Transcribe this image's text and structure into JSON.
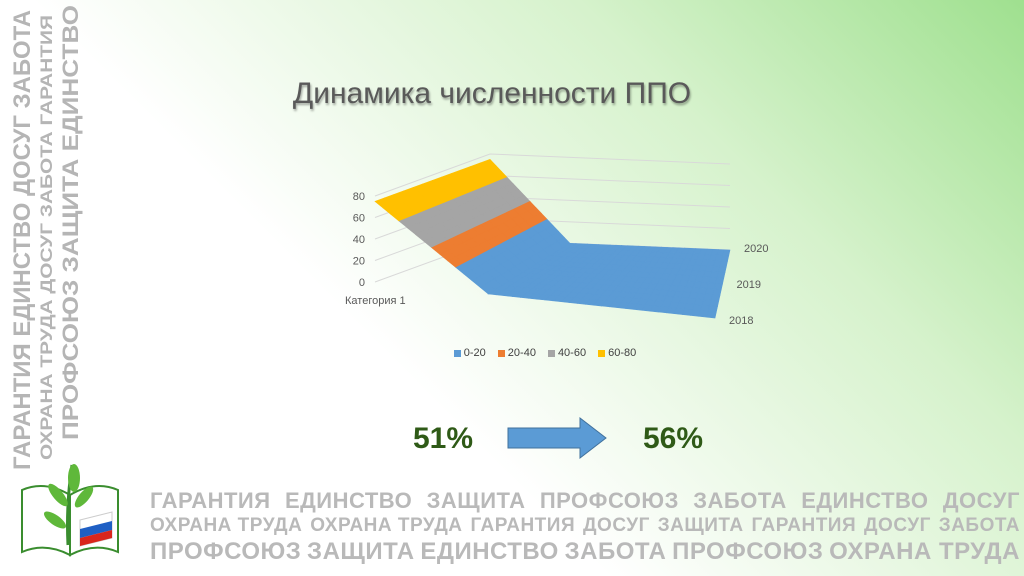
{
  "title": "Динамика численности ППО",
  "chart_data": {
    "type": "surface",
    "categories": [
      "Категория 1",
      null,
      null,
      null
    ],
    "series": [
      {
        "name": "2018",
        "values": [
          75,
          0,
          0,
          0
        ]
      },
      {
        "name": "2019",
        "values": [
          75,
          0,
          0,
          0
        ]
      },
      {
        "name": "2020",
        "values": [
          75,
          0,
          0,
          0
        ]
      }
    ],
    "zlim": [
      0,
      80
    ],
    "zticks": [
      0,
      20,
      40,
      60,
      80
    ],
    "grid": true,
    "bands": [
      {
        "name": "0-20",
        "color": "#5b9bd5"
      },
      {
        "name": "20-40",
        "color": "#ed7d31"
      },
      {
        "name": "40-60",
        "color": "#a5a5a5"
      },
      {
        "name": "60-80",
        "color": "#ffc000"
      }
    ],
    "legend": "bottom"
  },
  "comparison": {
    "from": "51%",
    "to": "56%",
    "color": "#2f5a17",
    "arrow_color": "#5b9bd5"
  },
  "watermark": {
    "columns": [
      "ГАРАНТИЯ ЕДИНСТВО ДОСУГ ЗАБОТА",
      "ОХРАНА ТРУДА ДОСУГ ЗАБОТА ГАРАНТИЯ",
      "ПРОФСОЮЗ ЗАЩИТА ЕДИНСТВО"
    ],
    "rows": [
      [
        "ГАРАНТИЯ",
        "ЕДИНСТВО",
        "ЗАЩИТА",
        "ПРОФСОЮЗ",
        "ЗАБОТА",
        "ЕДИНСТВО",
        "ДОСУГ"
      ],
      [
        "ОХРАНА ТРУДА",
        "ОХРАНА ТРУДА",
        "ГАРАНТИЯ",
        "ДОСУГ",
        "ЗАЩИТА",
        "ГАРАНТИЯ",
        "ДОСУГ",
        "ЗАБОТА"
      ],
      [
        "ПРОФСОЮЗ",
        "ЗАЩИТА",
        "ЕДИНСТВО",
        "ЗАБОТА",
        "ПРОФСОЮЗ",
        "ОХРАНА ТРУДА"
      ]
    ]
  }
}
